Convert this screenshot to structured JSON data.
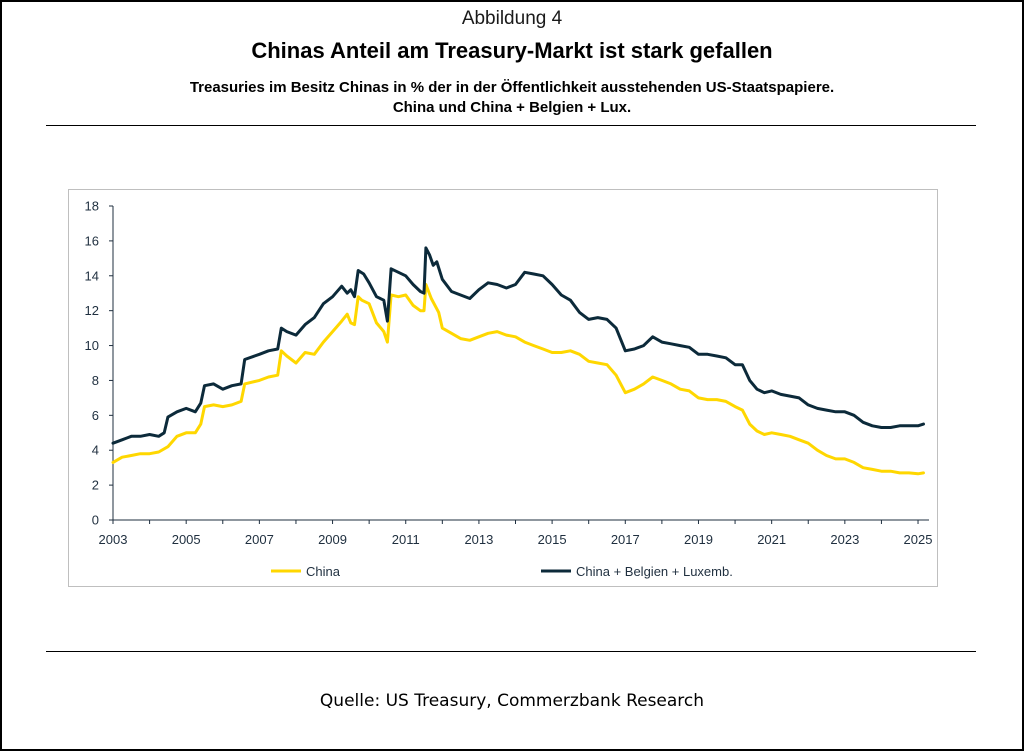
{
  "figure_number": "Abbildung 4",
  "title": "Chinas Anteil am Treasury-Markt ist stark gefallen",
  "subtitle_line1": "Treasuries im Besitz Chinas in % der in der Öffentlichkeit ausstehenden US-Staatspapiere.",
  "subtitle_line2": "China und China + Belgien + Lux.",
  "source": "Quelle: US Treasury, Commerzbank Research",
  "colors": {
    "china": "#ffd700",
    "china_bel_lux": "#0c2a3a",
    "axis": "#1f2f3f"
  },
  "chart_data": {
    "type": "line",
    "title": "Chinas Anteil am Treasury-Markt ist stark gefallen",
    "xlabel": "",
    "ylabel": "",
    "xlim": [
      2003,
      2025.3
    ],
    "ylim": [
      0,
      18
    ],
    "x_ticks": [
      2003,
      2005,
      2007,
      2009,
      2011,
      2013,
      2015,
      2017,
      2019,
      2021,
      2023,
      2025
    ],
    "y_ticks": [
      0,
      2,
      4,
      6,
      8,
      10,
      12,
      14,
      16,
      18
    ],
    "grid": false,
    "legend_position": "bottom",
    "series": [
      {
        "name": "China",
        "color": "#ffd700",
        "points": [
          [
            2003.0,
            3.3
          ],
          [
            2003.25,
            3.6
          ],
          [
            2003.5,
            3.7
          ],
          [
            2003.75,
            3.8
          ],
          [
            2004.0,
            3.8
          ],
          [
            2004.25,
            3.9
          ],
          [
            2004.5,
            4.2
          ],
          [
            2004.75,
            4.8
          ],
          [
            2005.0,
            5.0
          ],
          [
            2005.25,
            5.0
          ],
          [
            2005.4,
            5.5
          ],
          [
            2005.5,
            6.5
          ],
          [
            2005.75,
            6.6
          ],
          [
            2006.0,
            6.5
          ],
          [
            2006.25,
            6.6
          ],
          [
            2006.5,
            6.8
          ],
          [
            2006.6,
            7.8
          ],
          [
            2007.0,
            8.0
          ],
          [
            2007.25,
            8.2
          ],
          [
            2007.5,
            8.3
          ],
          [
            2007.6,
            9.7
          ],
          [
            2007.75,
            9.4
          ],
          [
            2008.0,
            9.0
          ],
          [
            2008.25,
            9.6
          ],
          [
            2008.5,
            9.5
          ],
          [
            2008.75,
            10.2
          ],
          [
            2009.0,
            10.8
          ],
          [
            2009.25,
            11.4
          ],
          [
            2009.4,
            11.8
          ],
          [
            2009.5,
            11.3
          ],
          [
            2009.6,
            11.2
          ],
          [
            2009.7,
            12.8
          ],
          [
            2009.8,
            12.6
          ],
          [
            2010.0,
            12.4
          ],
          [
            2010.2,
            11.3
          ],
          [
            2010.4,
            10.8
          ],
          [
            2010.5,
            10.2
          ],
          [
            2010.6,
            12.9
          ],
          [
            2010.8,
            12.8
          ],
          [
            2011.0,
            12.9
          ],
          [
            2011.2,
            12.3
          ],
          [
            2011.4,
            12.0
          ],
          [
            2011.5,
            12.0
          ],
          [
            2011.55,
            13.5
          ],
          [
            2011.7,
            12.7
          ],
          [
            2011.9,
            11.9
          ],
          [
            2012.0,
            11.0
          ],
          [
            2012.25,
            10.7
          ],
          [
            2012.5,
            10.4
          ],
          [
            2012.75,
            10.3
          ],
          [
            2013.0,
            10.5
          ],
          [
            2013.25,
            10.7
          ],
          [
            2013.5,
            10.8
          ],
          [
            2013.75,
            10.6
          ],
          [
            2014.0,
            10.5
          ],
          [
            2014.25,
            10.2
          ],
          [
            2014.5,
            10.0
          ],
          [
            2014.75,
            9.8
          ],
          [
            2015.0,
            9.6
          ],
          [
            2015.25,
            9.6
          ],
          [
            2015.5,
            9.7
          ],
          [
            2015.75,
            9.5
          ],
          [
            2016.0,
            9.1
          ],
          [
            2016.25,
            9.0
          ],
          [
            2016.5,
            8.9
          ],
          [
            2016.75,
            8.3
          ],
          [
            2017.0,
            7.3
          ],
          [
            2017.25,
            7.5
          ],
          [
            2017.5,
            7.8
          ],
          [
            2017.75,
            8.2
          ],
          [
            2018.0,
            8.0
          ],
          [
            2018.25,
            7.8
          ],
          [
            2018.5,
            7.5
          ],
          [
            2018.75,
            7.4
          ],
          [
            2019.0,
            7.0
          ],
          [
            2019.25,
            6.9
          ],
          [
            2019.5,
            6.9
          ],
          [
            2019.75,
            6.8
          ],
          [
            2020.0,
            6.5
          ],
          [
            2020.2,
            6.3
          ],
          [
            2020.4,
            5.5
          ],
          [
            2020.6,
            5.1
          ],
          [
            2020.8,
            4.9
          ],
          [
            2021.0,
            5.0
          ],
          [
            2021.25,
            4.9
          ],
          [
            2021.5,
            4.8
          ],
          [
            2021.75,
            4.6
          ],
          [
            2022.0,
            4.4
          ],
          [
            2022.25,
            4.0
          ],
          [
            2022.5,
            3.7
          ],
          [
            2022.75,
            3.5
          ],
          [
            2023.0,
            3.5
          ],
          [
            2023.25,
            3.3
          ],
          [
            2023.5,
            3.0
          ],
          [
            2023.75,
            2.9
          ],
          [
            2024.0,
            2.8
          ],
          [
            2024.25,
            2.8
          ],
          [
            2024.5,
            2.7
          ],
          [
            2024.75,
            2.7
          ],
          [
            2025.0,
            2.65
          ],
          [
            2025.15,
            2.7
          ]
        ]
      },
      {
        "name": "China + Belgien + Luxemb.",
        "color": "#0c2a3a",
        "points": [
          [
            2003.0,
            4.4
          ],
          [
            2003.25,
            4.6
          ],
          [
            2003.5,
            4.8
          ],
          [
            2003.75,
            4.8
          ],
          [
            2004.0,
            4.9
          ],
          [
            2004.25,
            4.8
          ],
          [
            2004.4,
            5.0
          ],
          [
            2004.5,
            5.9
          ],
          [
            2004.75,
            6.2
          ],
          [
            2005.0,
            6.4
          ],
          [
            2005.25,
            6.2
          ],
          [
            2005.4,
            6.7
          ],
          [
            2005.5,
            7.7
          ],
          [
            2005.75,
            7.8
          ],
          [
            2006.0,
            7.5
          ],
          [
            2006.25,
            7.7
          ],
          [
            2006.5,
            7.8
          ],
          [
            2006.6,
            9.2
          ],
          [
            2007.0,
            9.5
          ],
          [
            2007.25,
            9.7
          ],
          [
            2007.5,
            9.8
          ],
          [
            2007.6,
            11.0
          ],
          [
            2007.75,
            10.8
          ],
          [
            2008.0,
            10.6
          ],
          [
            2008.25,
            11.2
          ],
          [
            2008.5,
            11.6
          ],
          [
            2008.75,
            12.4
          ],
          [
            2009.0,
            12.8
          ],
          [
            2009.25,
            13.4
          ],
          [
            2009.4,
            13.0
          ],
          [
            2009.5,
            13.2
          ],
          [
            2009.6,
            12.8
          ],
          [
            2009.7,
            14.3
          ],
          [
            2009.85,
            14.1
          ],
          [
            2010.0,
            13.6
          ],
          [
            2010.2,
            12.8
          ],
          [
            2010.4,
            12.6
          ],
          [
            2010.5,
            11.4
          ],
          [
            2010.6,
            14.4
          ],
          [
            2010.8,
            14.2
          ],
          [
            2011.0,
            14.0
          ],
          [
            2011.2,
            13.5
          ],
          [
            2011.4,
            13.1
          ],
          [
            2011.5,
            13.0
          ],
          [
            2011.55,
            15.6
          ],
          [
            2011.65,
            15.2
          ],
          [
            2011.75,
            14.6
          ],
          [
            2011.85,
            14.8
          ],
          [
            2012.0,
            13.8
          ],
          [
            2012.25,
            13.1
          ],
          [
            2012.5,
            12.9
          ],
          [
            2012.75,
            12.7
          ],
          [
            2013.0,
            13.2
          ],
          [
            2013.25,
            13.6
          ],
          [
            2013.5,
            13.5
          ],
          [
            2013.75,
            13.3
          ],
          [
            2014.0,
            13.5
          ],
          [
            2014.25,
            14.2
          ],
          [
            2014.5,
            14.1
          ],
          [
            2014.75,
            14.0
          ],
          [
            2015.0,
            13.5
          ],
          [
            2015.25,
            12.9
          ],
          [
            2015.5,
            12.6
          ],
          [
            2015.75,
            11.9
          ],
          [
            2016.0,
            11.5
          ],
          [
            2016.25,
            11.6
          ],
          [
            2016.5,
            11.5
          ],
          [
            2016.75,
            11.0
          ],
          [
            2017.0,
            9.7
          ],
          [
            2017.25,
            9.8
          ],
          [
            2017.5,
            10.0
          ],
          [
            2017.75,
            10.5
          ],
          [
            2018.0,
            10.2
          ],
          [
            2018.25,
            10.1
          ],
          [
            2018.5,
            10.0
          ],
          [
            2018.75,
            9.9
          ],
          [
            2019.0,
            9.5
          ],
          [
            2019.25,
            9.5
          ],
          [
            2019.5,
            9.4
          ],
          [
            2019.75,
            9.3
          ],
          [
            2020.0,
            8.9
          ],
          [
            2020.2,
            8.9
          ],
          [
            2020.4,
            8.0
          ],
          [
            2020.6,
            7.5
          ],
          [
            2020.8,
            7.3
          ],
          [
            2021.0,
            7.4
          ],
          [
            2021.25,
            7.2
          ],
          [
            2021.5,
            7.1
          ],
          [
            2021.75,
            7.0
          ],
          [
            2022.0,
            6.6
          ],
          [
            2022.25,
            6.4
          ],
          [
            2022.5,
            6.3
          ],
          [
            2022.75,
            6.2
          ],
          [
            2023.0,
            6.2
          ],
          [
            2023.25,
            6.0
          ],
          [
            2023.5,
            5.6
          ],
          [
            2023.75,
            5.4
          ],
          [
            2024.0,
            5.3
          ],
          [
            2024.25,
            5.3
          ],
          [
            2024.5,
            5.4
          ],
          [
            2024.75,
            5.4
          ],
          [
            2025.0,
            5.4
          ],
          [
            2025.15,
            5.5
          ]
        ]
      }
    ]
  }
}
